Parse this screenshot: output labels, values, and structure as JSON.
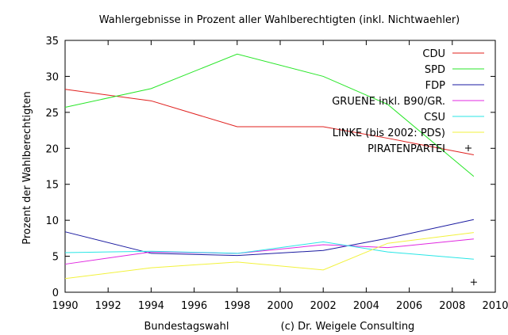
{
  "chart_data": {
    "type": "line",
    "title": "Wahlergebnisse in Prozent aller Wahlberechtigten (inkl. Nichtwaehler)",
    "xlabel": "Bundestagswahl",
    "xlabel_note": "(c) Dr. Weigele Consulting",
    "ylabel": "Prozent der Wahlberechtigten",
    "xlim": [
      1990,
      2010
    ],
    "ylim": [
      0,
      35
    ],
    "xticks": [
      1990,
      1992,
      1994,
      1996,
      1998,
      2000,
      2002,
      2004,
      2006,
      2008,
      2010
    ],
    "yticks": [
      0,
      5,
      10,
      15,
      20,
      25,
      30,
      35
    ],
    "grid": false,
    "legend_position": "top-right",
    "series": [
      {
        "name": "CDU",
        "color": "#e0201e",
        "style": "line",
        "x": [
          1990,
          1994,
          1998,
          2002,
          2005,
          2009
        ],
        "y": [
          28.2,
          26.6,
          23.0,
          23.0,
          21.4,
          19.1
        ]
      },
      {
        "name": "SPD",
        "color": "#28e628",
        "style": "line",
        "x": [
          1990,
          1994,
          1998,
          2002,
          2005,
          2009
        ],
        "y": [
          25.7,
          28.3,
          33.1,
          30.0,
          26.1,
          16.1
        ]
      },
      {
        "name": "FDP",
        "color": "#1a1aa0",
        "style": "line",
        "x": [
          1990,
          1994,
          1998,
          2002,
          2005,
          2009
        ],
        "y": [
          8.4,
          5.4,
          5.1,
          5.8,
          7.5,
          10.1
        ]
      },
      {
        "name": "GRUENE inkl. B90/GR.",
        "color": "#e028e0",
        "style": "line",
        "x": [
          1990,
          1994,
          1998,
          2002,
          2005,
          2009
        ],
        "y": [
          3.9,
          5.6,
          5.4,
          6.6,
          6.2,
          7.4
        ]
      },
      {
        "name": "CSU",
        "color": "#28e6e6",
        "style": "line",
        "x": [
          1990,
          1994,
          1998,
          2002,
          2005,
          2009
        ],
        "y": [
          5.5,
          5.7,
          5.4,
          7.0,
          5.6,
          4.6
        ]
      },
      {
        "name": "LINKE (bis 2002: PDS)",
        "color": "#f2f23c",
        "style": "line",
        "x": [
          1990,
          1994,
          1998,
          2002,
          2005,
          2009
        ],
        "y": [
          1.9,
          3.4,
          4.2,
          3.1,
          6.8,
          8.3
        ]
      },
      {
        "name": "PIRATENPARTEI",
        "color": "#000000",
        "style": "points",
        "x": [
          2009
        ],
        "y": [
          1.4
        ]
      }
    ]
  }
}
